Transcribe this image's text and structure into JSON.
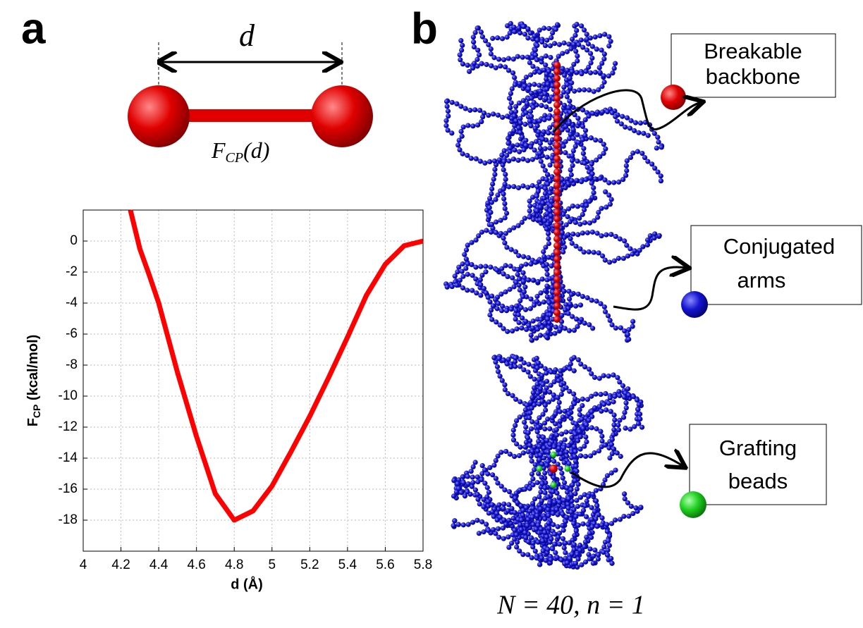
{
  "chart_data": {
    "type": "line",
    "xlabel": "d (Å)",
    "ylabel": {
      "main": "F",
      "sub": "CP",
      "rest": " (kcal/mol)"
    },
    "x": [
      4.25,
      4.3,
      4.35,
      4.4,
      4.5,
      4.6,
      4.7,
      4.8,
      4.9,
      5.0,
      5.1,
      5.2,
      5.3,
      5.4,
      5.5,
      5.6,
      5.7,
      5.8
    ],
    "values": [
      2,
      -0.5,
      -2.2,
      -4,
      -8.5,
      -12.6,
      -16.3,
      -18,
      -17.4,
      -15.8,
      -13.6,
      -11.3,
      -8.8,
      -6.2,
      -3.5,
      -1.5,
      -0.3,
      0
    ],
    "color": "#ff0000",
    "xlim": [
      4,
      5.8
    ],
    "xticks": [
      4,
      4.2,
      4.4,
      4.6,
      4.8,
      5,
      5.2,
      5.4,
      5.6,
      5.8
    ],
    "ylim": [
      -20,
      2
    ],
    "yticks": [
      0,
      -2,
      -4,
      -6,
      -8,
      -10,
      -12,
      -14,
      -16,
      -18
    ],
    "grid": true
  },
  "figure": {
    "panel_a": "a",
    "panel_b": "b",
    "distance_label": "d",
    "potential_label": {
      "main": "F",
      "sub": "CP",
      "rest": "(d)"
    },
    "backbone_box": [
      "Breakable",
      "backbone"
    ],
    "arms_box": [
      "Conjugated",
      "arms"
    ],
    "grafting_box": [
      "Grafting",
      "beads"
    ],
    "caption": "N = 40,  n = 1"
  }
}
